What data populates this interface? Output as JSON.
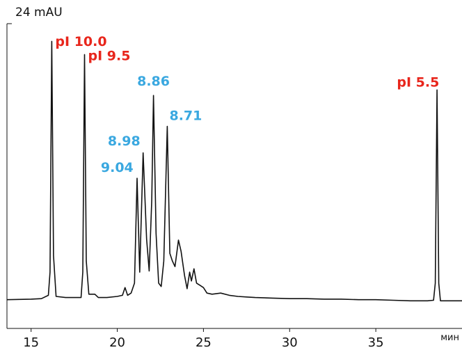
{
  "chart_data": {
    "type": "line",
    "ylabel": "24 mAU",
    "xlabel": "мин",
    "xlim": [
      13.6,
      40.0
    ],
    "ylim": [
      -2.6,
      25.0
    ],
    "x_ticks": [
      15,
      20,
      25,
      30,
      35
    ],
    "grid": false,
    "line_color": "#111111",
    "label_colors": {
      "marker": "#e8261c",
      "sample": "#3aa8e0"
    },
    "peak_labels": [
      {
        "text": "pI 10.0",
        "x": 16.2,
        "y": 23.5,
        "kind": "marker"
      },
      {
        "text": "pI 9.5",
        "x": 18.1,
        "y": 22.2,
        "kind": "marker"
      },
      {
        "text": "8.86",
        "x": 22.1,
        "y": 18.9,
        "kind": "sample"
      },
      {
        "text": "8.71",
        "x": 22.9,
        "y": 15.9,
        "kind": "sample"
      },
      {
        "text": "8.98",
        "x": 21.5,
        "y": 13.6,
        "kind": "sample"
      },
      {
        "text": "9.04",
        "x": 21.1,
        "y": 11.2,
        "kind": "sample"
      },
      {
        "text": "pI 5.5",
        "x": 38.6,
        "y": 19.3,
        "kind": "marker"
      }
    ],
    "series": [
      {
        "values": [
          [
            13.6,
            0.0
          ],
          [
            15.0,
            0.05
          ],
          [
            15.6,
            0.1
          ],
          [
            16.0,
            0.4
          ],
          [
            16.1,
            2.5
          ],
          [
            16.2,
            23.4
          ],
          [
            16.3,
            4.0
          ],
          [
            16.45,
            0.3
          ],
          [
            17.0,
            0.2
          ],
          [
            17.9,
            0.2
          ],
          [
            18.0,
            2.5
          ],
          [
            18.1,
            22.2
          ],
          [
            18.2,
            3.5
          ],
          [
            18.35,
            0.5
          ],
          [
            18.7,
            0.5
          ],
          [
            18.9,
            0.2
          ],
          [
            19.4,
            0.2
          ],
          [
            20.0,
            0.3
          ],
          [
            20.3,
            0.4
          ],
          [
            20.45,
            1.1
          ],
          [
            20.6,
            0.4
          ],
          [
            20.8,
            0.6
          ],
          [
            21.0,
            1.5
          ],
          [
            21.15,
            11.0
          ],
          [
            21.3,
            2.5
          ],
          [
            21.5,
            13.3
          ],
          [
            21.7,
            5.5
          ],
          [
            21.85,
            2.6
          ],
          [
            22.0,
            9.0
          ],
          [
            22.1,
            18.5
          ],
          [
            22.25,
            6.0
          ],
          [
            22.4,
            1.5
          ],
          [
            22.55,
            1.2
          ],
          [
            22.7,
            3.5
          ],
          [
            22.9,
            15.7
          ],
          [
            23.05,
            4.2
          ],
          [
            23.2,
            3.5
          ],
          [
            23.35,
            3.0
          ],
          [
            23.55,
            5.4
          ],
          [
            23.7,
            4.4
          ],
          [
            23.9,
            2.2
          ],
          [
            24.05,
            1.0
          ],
          [
            24.2,
            2.5
          ],
          [
            24.3,
            1.7
          ],
          [
            24.45,
            2.8
          ],
          [
            24.6,
            1.5
          ],
          [
            24.8,
            1.3
          ],
          [
            25.0,
            1.1
          ],
          [
            25.2,
            0.6
          ],
          [
            25.5,
            0.5
          ],
          [
            26.0,
            0.6
          ],
          [
            26.5,
            0.4
          ],
          [
            27.0,
            0.3
          ],
          [
            27.5,
            0.25
          ],
          [
            28.0,
            0.2
          ],
          [
            29.0,
            0.15
          ],
          [
            30.0,
            0.1
          ],
          [
            31.0,
            0.1
          ],
          [
            32.0,
            0.05
          ],
          [
            33.0,
            0.05
          ],
          [
            34.0,
            0.0
          ],
          [
            35.0,
            0.0
          ],
          [
            36.0,
            -0.05
          ],
          [
            37.0,
            -0.1
          ],
          [
            38.0,
            -0.1
          ],
          [
            38.35,
            -0.05
          ],
          [
            38.45,
            1.5
          ],
          [
            38.55,
            19.0
          ],
          [
            38.65,
            1.5
          ],
          [
            38.75,
            -0.1
          ],
          [
            39.2,
            -0.1
          ],
          [
            40.0,
            -0.1
          ]
        ]
      }
    ]
  }
}
